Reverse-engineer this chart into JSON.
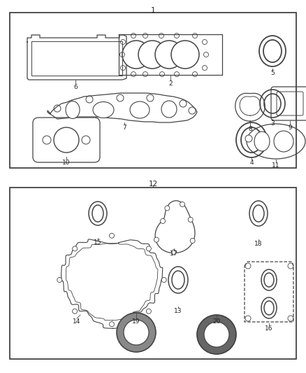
{
  "bg_color": "#ffffff",
  "line_color": "#444444",
  "label_color": "#222222",
  "fig_w": 4.38,
  "fig_h": 5.33,
  "dpi": 100
}
